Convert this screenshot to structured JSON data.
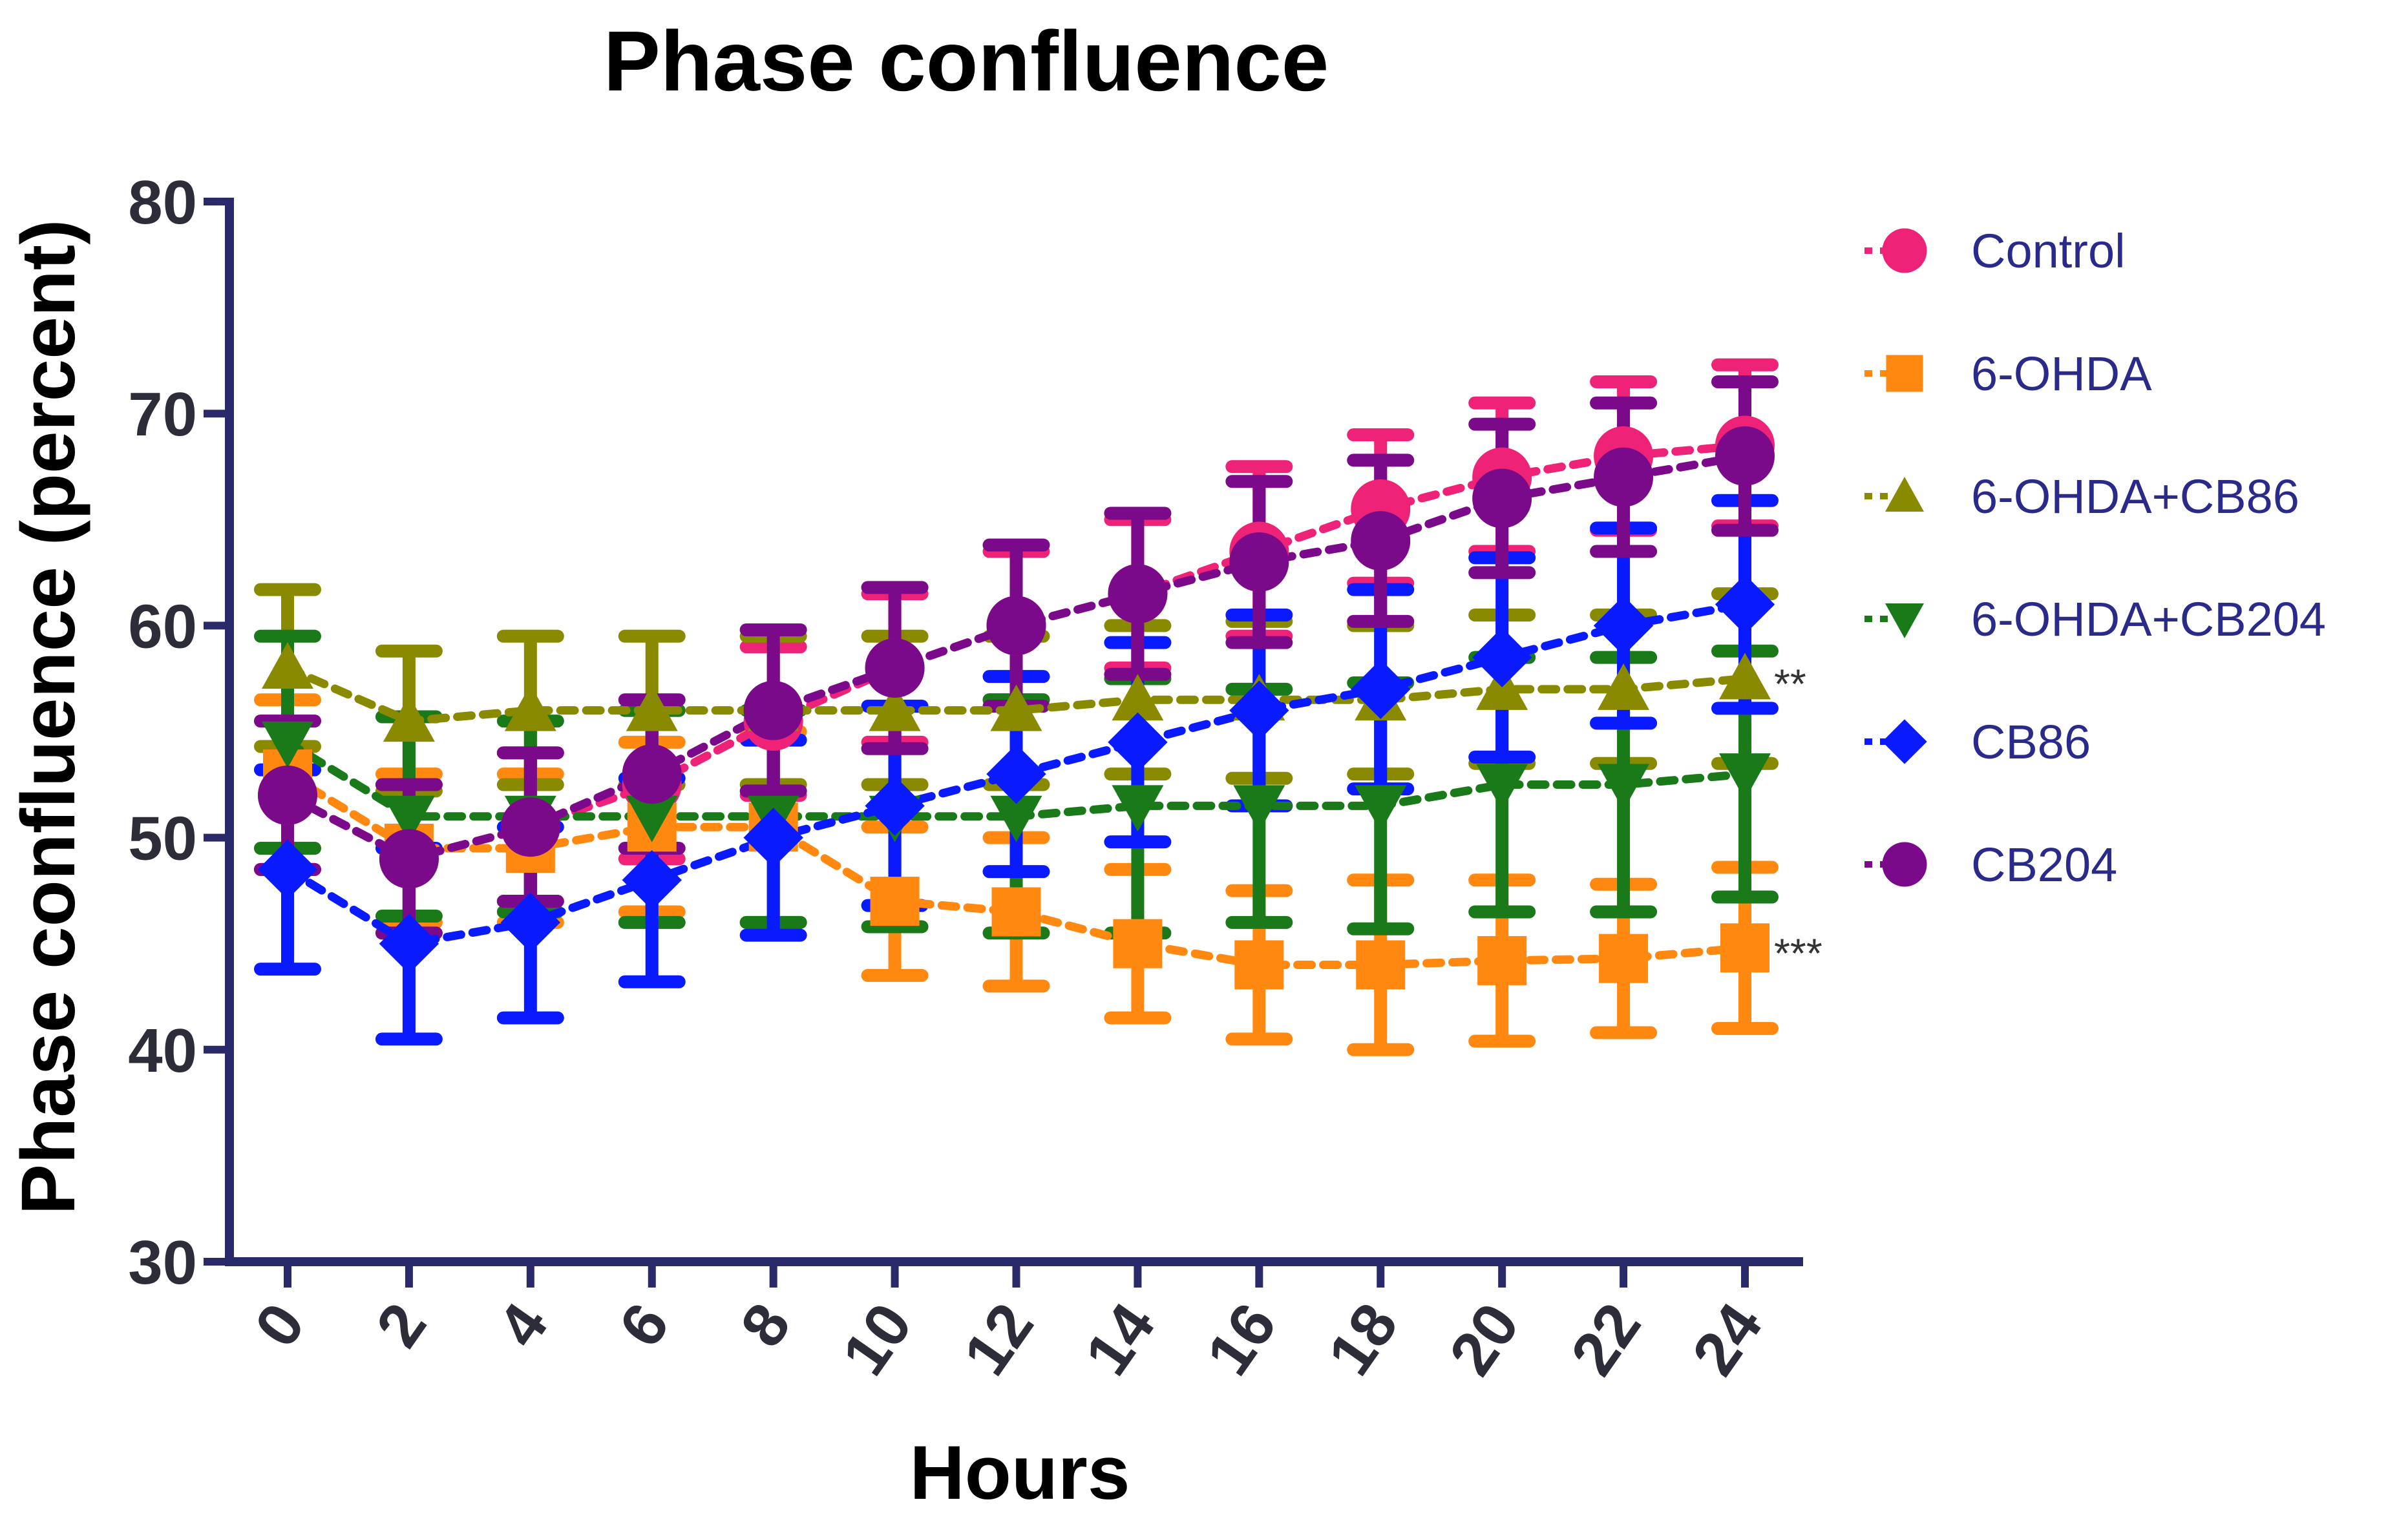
{
  "chart_data": {
    "type": "line",
    "title": "Phase confluence",
    "xlabel": "Hours",
    "ylabel": "Phase confluence (percent)",
    "ylim": [
      30,
      80
    ],
    "y_ticks": [
      30,
      40,
      50,
      60,
      70,
      80
    ],
    "x": [
      0,
      2,
      4,
      6,
      8,
      10,
      12,
      14,
      16,
      18,
      20,
      22,
      24
    ],
    "x_tick_labels": [
      "0",
      "2",
      "4",
      "6",
      "8",
      "10",
      "12",
      "14",
      "16",
      "18",
      "20",
      "22",
      "24"
    ],
    "grid": false,
    "legend_position": "right",
    "series": [
      {
        "name": "Control",
        "color": "#ee2277",
        "marker": "circle",
        "values": [
          52.0,
          49.0,
          50.5,
          52.5,
          55.5,
          58.0,
          60.0,
          61.5,
          63.5,
          65.5,
          67.0,
          68.0,
          68.5
        ],
        "errors": [
          3.5,
          3.5,
          3.5,
          3.5,
          3.5,
          3.5,
          3.5,
          3.5,
          4.0,
          3.5,
          3.5,
          3.5,
          3.8
        ]
      },
      {
        "name": "6-OHDA",
        "color": "#ff8811",
        "marker": "square",
        "values": [
          53.0,
          49.5,
          49.5,
          50.5,
          50.5,
          47.0,
          46.5,
          45.0,
          44.0,
          44.0,
          44.2,
          44.3,
          44.8
        ],
        "errors": [
          3.5,
          3.5,
          3.5,
          4.0,
          4.5,
          3.5,
          3.5,
          3.5,
          3.5,
          4.0,
          3.8,
          3.5,
          3.8
        ]
      },
      {
        "name": "6-OHDA+CB86",
        "color": "#8a8a00",
        "marker": "triangle-up",
        "values": [
          58.0,
          55.5,
          56.0,
          56.0,
          56.0,
          56.0,
          56.0,
          56.5,
          56.5,
          56.5,
          57.0,
          57.0,
          57.5
        ],
        "errors": [
          3.7,
          3.3,
          3.5,
          3.5,
          3.5,
          3.5,
          3.5,
          3.5,
          3.7,
          3.5,
          3.5,
          3.5,
          4.0
        ]
      },
      {
        "name": "6-OHDA+CB204",
        "color": "#1a7a1a",
        "marker": "triangle-down",
        "values": [
          54.5,
          51.0,
          51.0,
          51.0,
          51.0,
          51.0,
          51.0,
          51.5,
          51.5,
          51.5,
          52.5,
          52.5,
          53.0
        ],
        "errors": [
          5.0,
          4.7,
          4.5,
          5.0,
          5.0,
          5.2,
          5.5,
          6.0,
          5.5,
          5.8,
          6.0,
          6.0,
          5.8
        ]
      },
      {
        "name": "CB86",
        "color": "#0a1aff",
        "marker": "diamond",
        "values": [
          48.5,
          45.0,
          46.0,
          48.0,
          50.0,
          51.5,
          53.0,
          54.5,
          56.0,
          57.0,
          58.5,
          60.0,
          61.0
        ],
        "errors": [
          4.7,
          4.5,
          4.5,
          4.8,
          4.6,
          4.7,
          4.6,
          4.7,
          4.5,
          4.7,
          4.7,
          4.6,
          4.9
        ]
      },
      {
        "name": "CB204",
        "color": "#7a0a8a",
        "marker": "circle",
        "values": [
          52.0,
          49.0,
          50.5,
          53.0,
          56.0,
          58.0,
          60.0,
          61.5,
          63.0,
          64.0,
          66.0,
          67.0,
          68.0
        ],
        "errors": [
          3.5,
          3.5,
          3.5,
          3.5,
          3.8,
          3.8,
          3.8,
          3.8,
          3.8,
          3.8,
          3.5,
          3.5,
          3.5
        ]
      }
    ],
    "annotations": [
      {
        "text": "**",
        "series": "6-OHDA+CB86"
      },
      {
        "text": "***",
        "series": "6-OHDA"
      }
    ]
  }
}
